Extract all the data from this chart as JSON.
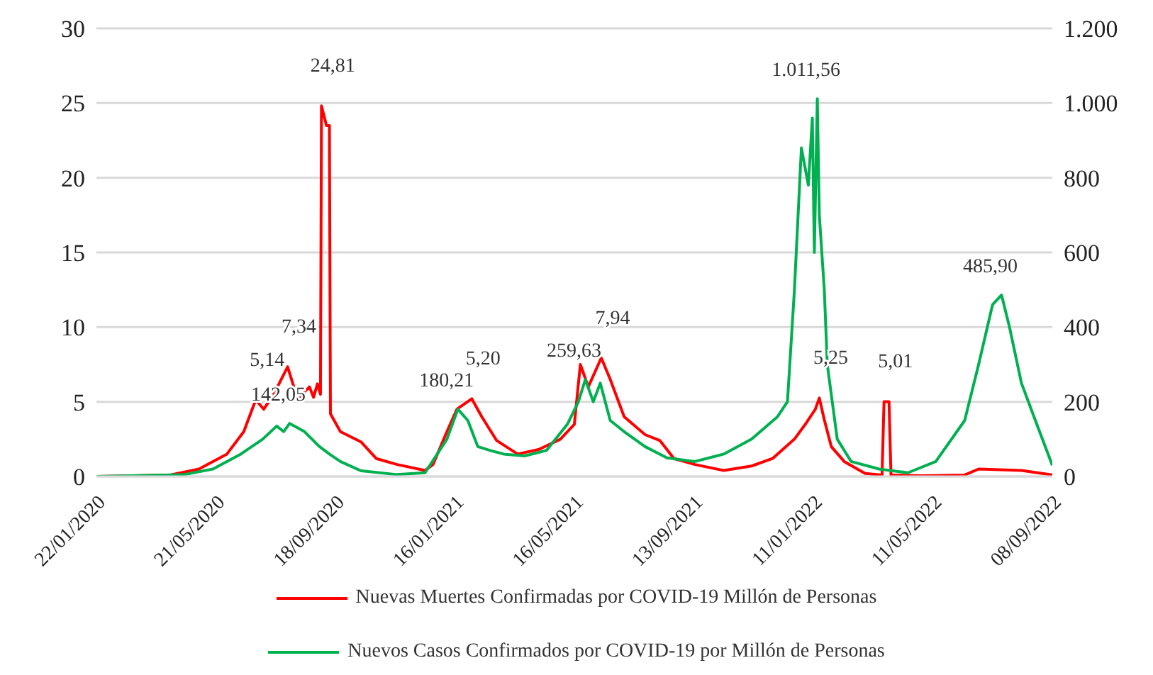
{
  "chart_data": {
    "type": "line",
    "legend": "bottom",
    "grid": "y",
    "marker": "none",
    "line_style": "solid",
    "xlim": [
      "2020-01-22",
      "2022-09-08"
    ],
    "xticks": [
      {
        "value": "2020-01-22",
        "label": "22/01/2020"
      },
      {
        "value": "2020-05-21",
        "label": "21/05/2020"
      },
      {
        "value": "2020-09-18",
        "label": "18/09/2020"
      },
      {
        "value": "2021-01-16",
        "label": "16/01/2021"
      },
      {
        "value": "2021-05-16",
        "label": "16/05/2021"
      },
      {
        "value": "2021-09-13",
        "label": "13/09/2021"
      },
      {
        "value": "2022-01-11",
        "label": "11/01/2022"
      },
      {
        "value": "2022-05-11",
        "label": "11/05/2022"
      },
      {
        "value": "2022-09-08",
        "label": "08/09/2022"
      }
    ],
    "ylim": [
      0,
      30
    ],
    "yticks": [
      0,
      5,
      10,
      15,
      20,
      25,
      30
    ],
    "y2lim": [
      0,
      1200
    ],
    "y2ticks": [
      0,
      {
        "value": 200,
        "label": "200"
      },
      {
        "value": 400,
        "label": "400"
      },
      {
        "value": 600,
        "label": "600"
      },
      {
        "value": 800,
        "label": "800"
      },
      {
        "value": 1000,
        "label": "1.000"
      },
      {
        "value": 1200,
        "label": "1.200"
      }
    ],
    "series": [
      {
        "name": "Nuevas Muertes Confirmadas por COVID-19 Millón de Personas",
        "color": "#ff0000",
        "axis": "y",
        "x": [
          "2020-01-22",
          "2020-04-05",
          "2020-05-04",
          "2020-06-01",
          "2020-06-18",
          "2020-06-30",
          "2020-07-08",
          "2020-07-18",
          "2020-08-01",
          "2020-08-11",
          "2020-08-23",
          "2020-08-27",
          "2020-08-31",
          "2020-09-03",
          "2020-09-04",
          "2020-09-09",
          "2020-09-12",
          "2020-09-13",
          "2020-09-23",
          "2020-10-14",
          "2020-10-29",
          "2020-11-19",
          "2020-12-17",
          "2020-12-25",
          "2021-01-08",
          "2021-01-18",
          "2021-02-02",
          "2021-02-12",
          "2021-02-27",
          "2021-03-20",
          "2021-04-10",
          "2021-05-02",
          "2021-05-16",
          "2021-05-22",
          "2021-05-30",
          "2021-06-12",
          "2021-06-21",
          "2021-07-05",
          "2021-07-26",
          "2021-08-10",
          "2021-08-24",
          "2021-09-14",
          "2021-10-13",
          "2021-11-10",
          "2021-12-01",
          "2021-12-23",
          "2022-01-03",
          "2022-01-13",
          "2022-01-17",
          "2022-01-22",
          "2022-01-29",
          "2022-02-11",
          "2022-03-04",
          "2022-03-21",
          "2022-03-23",
          "2022-03-28",
          "2022-03-30",
          "2022-04-30",
          "2022-06-12",
          "2022-06-26",
          "2022-08-08",
          "2022-09-08"
        ],
        "values": [
          0,
          0.1,
          0.5,
          1.5,
          3,
          5.14,
          4.5,
          5.5,
          7.34,
          5.2,
          6,
          5.3,
          6.2,
          5.5,
          24.81,
          23.5,
          23.5,
          4.2,
          3,
          2.3,
          1.2,
          0.8,
          0.4,
          0.8,
          3,
          4.5,
          5.2,
          4,
          2.4,
          1.5,
          1.8,
          2.5,
          3.5,
          7.5,
          6,
          7.94,
          6.5,
          4,
          2.8,
          2.4,
          1.2,
          0.8,
          0.4,
          0.7,
          1.2,
          2.5,
          3.5,
          4.5,
          5.25,
          3.8,
          2,
          1,
          0.2,
          0.1,
          5.01,
          5.01,
          0.1,
          0.05,
          0.1,
          0.5,
          0.4,
          0.1
        ],
        "value_labels": [
          null,
          null,
          null,
          null,
          null,
          "5,14",
          null,
          null,
          "7,34",
          null,
          null,
          null,
          null,
          null,
          "24,81",
          null,
          null,
          null,
          null,
          null,
          null,
          null,
          null,
          null,
          null,
          null,
          "5,20",
          null,
          null,
          null,
          null,
          null,
          null,
          null,
          null,
          "7,94",
          null,
          null,
          null,
          null,
          null,
          null,
          null,
          null,
          null,
          null,
          null,
          null,
          "5,25",
          null,
          null,
          null,
          null,
          null,
          "5,01",
          null,
          null,
          null,
          null,
          null,
          null,
          null
        ]
      },
      {
        "name": "Nuevos Casos Confirmados por COVID-19 por Millón de Personas",
        "color": "#00b050",
        "axis": "y2",
        "x": [
          "2020-01-22",
          "2020-04-19",
          "2020-05-18",
          "2020-06-15",
          "2020-07-07",
          "2020-07-21",
          "2020-07-28",
          "2020-08-03",
          "2020-08-18",
          "2020-09-02",
          "2020-09-12",
          "2020-09-23",
          "2020-10-14",
          "2020-11-19",
          "2020-12-17",
          "2021-01-08",
          "2021-01-19",
          "2021-01-29",
          "2021-02-08",
          "2021-02-20",
          "2021-03-06",
          "2021-03-27",
          "2021-04-18",
          "2021-05-09",
          "2021-05-20",
          "2021-05-27",
          "2021-06-04",
          "2021-06-11",
          "2021-06-21",
          "2021-07-05",
          "2021-07-26",
          "2021-08-17",
          "2021-09-14",
          "2021-10-13",
          "2021-11-10",
          "2021-12-06",
          "2021-12-16",
          "2021-12-23",
          "2021-12-30",
          "2022-01-06",
          "2022-01-10",
          "2022-01-12",
          "2022-01-15",
          "2022-01-17",
          "2022-01-22",
          "2022-01-25",
          "2022-02-04",
          "2022-02-18",
          "2022-03-18",
          "2022-04-16",
          "2022-05-14",
          "2022-06-12",
          "2022-06-26",
          "2022-07-10",
          "2022-07-19",
          "2022-07-27",
          "2022-08-08",
          "2022-08-22",
          "2022-09-08"
        ],
        "values": [
          0,
          5,
          20,
          60,
          100,
          135,
          120,
          142.05,
          120,
          80,
          60,
          40,
          15,
          5,
          10,
          100,
          180.21,
          150,
          80,
          70,
          60,
          55,
          70,
          140,
          200,
          259.63,
          200,
          250,
          150,
          120,
          80,
          50,
          40,
          60,
          100,
          160,
          200,
          500,
          880,
          780,
          960,
          600,
          1011.56,
          700,
          500,
          300,
          100,
          40,
          20,
          10,
          40,
          150,
          300,
          460,
          485.9,
          400,
          250,
          150,
          30
        ],
        "value_labels": [
          null,
          null,
          null,
          null,
          null,
          null,
          null,
          "142,05",
          null,
          null,
          null,
          null,
          null,
          null,
          null,
          null,
          "180,21",
          null,
          null,
          null,
          null,
          null,
          null,
          null,
          null,
          "259,63",
          null,
          null,
          null,
          null,
          null,
          null,
          null,
          null,
          null,
          null,
          null,
          null,
          null,
          null,
          null,
          null,
          "1.011,56",
          null,
          null,
          null,
          null,
          null,
          null,
          null,
          null,
          null,
          null,
          null,
          "485,90",
          null,
          null,
          null,
          null
        ]
      }
    ]
  }
}
